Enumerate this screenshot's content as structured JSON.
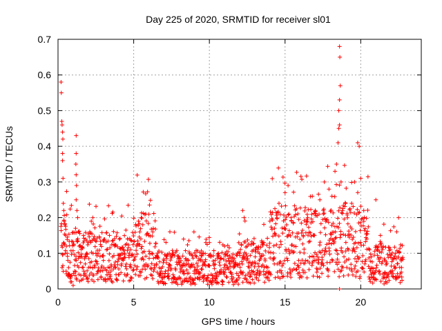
{
  "chart_data": {
    "type": "scatter",
    "title": "Day 225 of 2020, SRMTID for receiver sl01",
    "xlabel": "GPS time / hours",
    "ylabel": "SRMTID / TECUs",
    "xlim": [
      0,
      24
    ],
    "ylim": [
      0,
      0.7
    ],
    "xticks": [
      0,
      5,
      10,
      15,
      20
    ],
    "yticks": [
      0,
      0.1,
      0.2,
      0.3,
      0.4,
      0.5,
      0.6,
      0.7
    ],
    "xtick_labels": [
      "0",
      "5",
      "10",
      "15",
      "20"
    ],
    "ytick_labels": [
      "0",
      "0.1",
      "0.2",
      "0.3",
      "0.4",
      "0.5",
      "0.6",
      "0.7"
    ],
    "grid": true,
    "marker": "+",
    "color": "#ff0000",
    "series": [
      {
        "name": "SRMTID",
        "points": [
          [
            0.2,
            0.58
          ],
          [
            0.22,
            0.55
          ],
          [
            0.25,
            0.47
          ],
          [
            0.27,
            0.46
          ],
          [
            0.3,
            0.44
          ],
          [
            0.32,
            0.42
          ],
          [
            0.3,
            0.38
          ],
          [
            0.3,
            0.36
          ],
          [
            0.33,
            0.31
          ],
          [
            0.35,
            0.24
          ],
          [
            0.38,
            0.22
          ],
          [
            0.4,
            0.19
          ],
          [
            0.45,
            0.18
          ],
          [
            0.5,
            0.15
          ],
          [
            0.55,
            0.12
          ],
          [
            0.6,
            0.1
          ],
          [
            0.65,
            0.08
          ],
          [
            0.7,
            0.06
          ],
          [
            0.75,
            0.04
          ],
          [
            0.8,
            0.03
          ],
          [
            0.9,
            0.02
          ],
          [
            1.0,
            0.01
          ],
          [
            1.1,
            0.05
          ],
          [
            1.2,
            0.08
          ],
          [
            1.2,
            0.43
          ],
          [
            1.2,
            0.38
          ],
          [
            1.18,
            0.35
          ],
          [
            1.2,
            0.32
          ],
          [
            1.22,
            0.29
          ],
          [
            1.2,
            0.25
          ],
          [
            1.25,
            0.22
          ],
          [
            1.3,
            0.2
          ],
          [
            1.35,
            0.16
          ],
          [
            1.4,
            0.12
          ],
          [
            1.5,
            0.09
          ],
          [
            1.6,
            0.06
          ],
          [
            1.7,
            0.05
          ],
          [
            1.8,
            0.07
          ],
          [
            1.9,
            0.1
          ],
          [
            2.0,
            0.13
          ],
          [
            2.1,
            0.16
          ],
          [
            2.2,
            0.19
          ],
          [
            2.3,
            0.2
          ],
          [
            2.4,
            0.14
          ],
          [
            2.5,
            0.1
          ],
          [
            2.6,
            0.07
          ],
          [
            2.8,
            0.05
          ],
          [
            3.0,
            0.08
          ],
          [
            3.2,
            0.11
          ],
          [
            3.4,
            0.15
          ],
          [
            3.6,
            0.09
          ],
          [
            3.8,
            0.06
          ],
          [
            4.0,
            0.04
          ],
          [
            4.2,
            0.07
          ],
          [
            4.4,
            0.1
          ],
          [
            4.6,
            0.14
          ],
          [
            4.8,
            0.11
          ],
          [
            5.0,
            0.08
          ],
          [
            5.2,
            0.12
          ],
          [
            5.4,
            0.16
          ],
          [
            5.5,
            0.2
          ],
          [
            5.6,
            0.18
          ],
          [
            5.8,
            0.21
          ],
          [
            6.0,
            0.15
          ],
          [
            6.2,
            0.1
          ],
          [
            6.5,
            0.07
          ],
          [
            6.8,
            0.05
          ],
          [
            7.0,
            0.08
          ],
          [
            7.3,
            0.06
          ],
          [
            7.6,
            0.04
          ],
          [
            8.0,
            0.03
          ],
          [
            8.3,
            0.05
          ],
          [
            8.6,
            0.07
          ],
          [
            9.0,
            0.05
          ],
          [
            9.3,
            0.08
          ],
          [
            9.6,
            0.1
          ],
          [
            10.0,
            0.13
          ],
          [
            10.3,
            0.07
          ],
          [
            10.6,
            0.09
          ],
          [
            11.0,
            0.12
          ],
          [
            11.3,
            0.08
          ],
          [
            11.6,
            0.06
          ],
          [
            12.0,
            0.1
          ],
          [
            12.2,
            0.22
          ],
          [
            12.3,
            0.2
          ],
          [
            12.5,
            0.12
          ],
          [
            12.8,
            0.07
          ],
          [
            13.0,
            0.04
          ],
          [
            13.3,
            0.08
          ],
          [
            13.6,
            0.13
          ],
          [
            14.0,
            0.19
          ],
          [
            14.3,
            0.17
          ],
          [
            14.6,
            0.24
          ],
          [
            15.0,
            0.27
          ],
          [
            15.2,
            0.29
          ],
          [
            15.4,
            0.2
          ],
          [
            15.6,
            0.12
          ],
          [
            15.9,
            0.08
          ],
          [
            16.2,
            0.15
          ],
          [
            16.5,
            0.2
          ],
          [
            16.8,
            0.26
          ],
          [
            17.0,
            0.22
          ],
          [
            17.3,
            0.25
          ],
          [
            17.6,
            0.3
          ],
          [
            17.9,
            0.28
          ],
          [
            18.1,
            0.26
          ],
          [
            18.3,
            0.33
          ],
          [
            18.4,
            0.35
          ],
          [
            18.5,
            0.41
          ],
          [
            18.55,
            0.45
          ],
          [
            18.6,
            0.46
          ],
          [
            18.55,
            0.5
          ],
          [
            18.6,
            0.53
          ],
          [
            18.65,
            0.57
          ],
          [
            18.62,
            0.65
          ],
          [
            18.6,
            0.68
          ],
          [
            18.7,
            0.3
          ],
          [
            18.8,
            0.22
          ],
          [
            19.0,
            0.15
          ],
          [
            19.2,
            0.11
          ],
          [
            19.4,
            0.24
          ],
          [
            19.6,
            0.3
          ],
          [
            19.8,
            0.41
          ],
          [
            19.9,
            0.4
          ],
          [
            20.0,
            0.31
          ],
          [
            20.2,
            0.22
          ],
          [
            20.4,
            0.14
          ],
          [
            20.7,
            0.09
          ],
          [
            21.0,
            0.25
          ],
          [
            21.3,
            0.15
          ],
          [
            21.6,
            0.08
          ],
          [
            22.0,
            0.05
          ],
          [
            22.3,
            0.1
          ],
          [
            22.5,
            0.2
          ],
          [
            22.7,
            0.06
          ],
          [
            18.6,
            0.0
          ]
        ]
      }
    ]
  }
}
